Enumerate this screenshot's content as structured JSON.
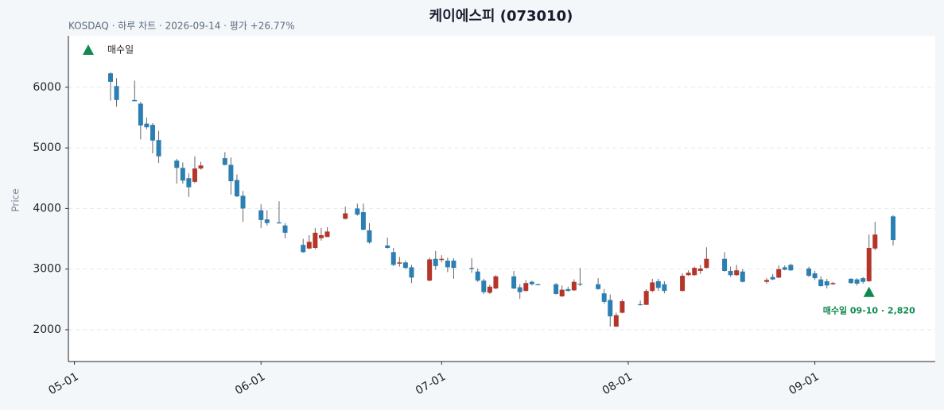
{
  "chart_data": {
    "type": "candlestick",
    "title": "케이에스피 (073010)",
    "subtitle": "KOSDAQ · 하루 차트 · 2026-09-14 · 평가 +26.77%",
    "y_label": "Price",
    "up_color": "#b5352b",
    "down_color": "#2b7fb3",
    "xlim": [
      "04-30",
      "09-21"
    ],
    "xticks": [
      "05-01",
      "06-01",
      "07-01",
      "08-01",
      "09-01"
    ],
    "ylim": [
      1475,
      6850
    ],
    "yticks": [
      2000,
      3000,
      4000,
      5000,
      6000
    ],
    "grid": true,
    "x": [
      "05-07",
      "05-08",
      "05-11",
      "05-12",
      "05-13",
      "05-14",
      "05-15",
      "05-18",
      "05-19",
      "05-20",
      "05-21",
      "05-22",
      "05-26",
      "05-27",
      "05-28",
      "05-29",
      "06-01",
      "06-02",
      "06-04",
      "06-05",
      "06-08",
      "06-09",
      "06-10",
      "06-11",
      "06-12",
      "06-15",
      "06-17",
      "06-18",
      "06-19",
      "06-22",
      "06-23",
      "06-24",
      "06-25",
      "06-26",
      "06-29",
      "06-30",
      "07-01",
      "07-02",
      "07-03",
      "07-06",
      "07-07",
      "07-08",
      "07-09",
      "07-10",
      "07-13",
      "07-14",
      "07-15",
      "07-16",
      "07-17",
      "07-20",
      "07-21",
      "07-22",
      "07-23",
      "07-24",
      "07-27",
      "07-28",
      "07-29",
      "07-30",
      "07-31",
      "08-03",
      "08-04",
      "08-05",
      "08-06",
      "08-07",
      "08-10",
      "08-11",
      "08-12",
      "08-13",
      "08-14",
      "08-17",
      "08-18",
      "08-19",
      "08-20",
      "08-24",
      "08-25",
      "08-26",
      "08-27",
      "08-28",
      "08-31",
      "09-01",
      "09-02",
      "09-03",
      "09-04",
      "09-07",
      "09-08",
      "09-09",
      "09-10",
      "09-11",
      "09-14"
    ],
    "open": [
      6230,
      6020,
      5790,
      5730,
      5400,
      5380,
      5130,
      4790,
      4670,
      4500,
      4440,
      4660,
      4830,
      4720,
      4470,
      4210,
      3970,
      3820,
      3770,
      3720,
      3400,
      3340,
      3350,
      3510,
      3530,
      3830,
      4000,
      3940,
      3640,
      3390,
      3280,
      3090,
      3110,
      3030,
      2810,
      3170,
      3150,
      3140,
      3140,
      3020,
      2960,
      2810,
      2610,
      2680,
      2880,
      2700,
      2640,
      2790,
      2750,
      2750,
      2550,
      2670,
      2650,
      2760,
      2750,
      2600,
      2490,
      2050,
      2280,
      2420,
      2410,
      2640,
      2800,
      2750,
      2640,
      2900,
      2900,
      2970,
      3020,
      3170,
      2970,
      2900,
      2960,
      2790,
      2870,
      2860,
      3030,
      3070,
      3010,
      2930,
      2830,
      2800,
      2750,
      2840,
      2830,
      2850,
      2800,
      3340,
      3870
    ],
    "high": [
      6250,
      6150,
      6110,
      5760,
      5500,
      5410,
      5280,
      4820,
      4760,
      4580,
      4860,
      4770,
      4930,
      4840,
      4560,
      4290,
      4070,
      3970,
      4120,
      3760,
      3500,
      3560,
      3680,
      3680,
      3690,
      4030,
      4080,
      4080,
      3760,
      3520,
      3350,
      3200,
      3140,
      3070,
      3190,
      3300,
      3230,
      3190,
      3180,
      3180,
      3010,
      2840,
      2740,
      2900,
      2970,
      2750,
      2820,
      2810,
      2760,
      2770,
      2730,
      2710,
      2830,
      3020,
      2850,
      2670,
      2580,
      2280,
      2500,
      2480,
      2670,
      2840,
      2840,
      2800,
      2930,
      2980,
      3040,
      3070,
      3360,
      3280,
      3040,
      3070,
      3000,
      2850,
      2920,
      3060,
      3060,
      3090,
      3040,
      2970,
      2880,
      2840,
      2790,
      2850,
      2850,
      2870,
      3570,
      3780,
      3890
    ],
    "low": [
      5780,
      5680,
      5770,
      5140,
      5310,
      4910,
      4750,
      4410,
      4410,
      4190,
      4420,
      4640,
      4710,
      4230,
      4190,
      3780,
      3680,
      3720,
      3750,
      3510,
      3270,
      3330,
      3330,
      3470,
      3530,
      3820,
      3880,
      3640,
      3420,
      3340,
      3050,
      3040,
      3000,
      2770,
      2800,
      2990,
      3110,
      2950,
      2840,
      2940,
      2790,
      2590,
      2590,
      2670,
      2670,
      2510,
      2630,
      2730,
      2740,
      2580,
      2540,
      2630,
      2640,
      2720,
      2660,
      2430,
      2050,
      2050,
      2270,
      2400,
      2410,
      2620,
      2640,
      2600,
      2630,
      2890,
      2890,
      2920,
      3010,
      2960,
      2870,
      2890,
      2780,
      2760,
      2820,
      2850,
      2980,
      2970,
      2870,
      2820,
      2710,
      2680,
      2740,
      2760,
      2730,
      2760,
      2790,
      3310,
      3390
    ],
    "close": [
      6090,
      5790,
      5770,
      5370,
      5340,
      5120,
      4860,
      4670,
      4460,
      4350,
      4660,
      4710,
      4720,
      4450,
      4200,
      4000,
      3810,
      3760,
      3760,
      3600,
      3280,
      3450,
      3600,
      3560,
      3620,
      3920,
      3900,
      3650,
      3440,
      3350,
      3070,
      3110,
      3020,
      2860,
      3160,
      3050,
      3170,
      3030,
      3020,
      3010,
      2810,
      2620,
      2710,
      2880,
      2680,
      2620,
      2770,
      2750,
      2740,
      2590,
      2660,
      2640,
      2790,
      2750,
      2670,
      2460,
      2220,
      2240,
      2470,
      2410,
      2640,
      2780,
      2690,
      2640,
      2890,
      2940,
      3020,
      3010,
      3170,
      2970,
      2900,
      2980,
      2790,
      2820,
      2830,
      3000,
      2990,
      2980,
      2890,
      2850,
      2720,
      2730,
      2770,
      2770,
      2760,
      2790,
      3350,
      3570,
      3480
    ],
    "markers": {
      "name": "매수일",
      "color": "#0e8a4f",
      "points": [
        {
          "x": "09-10",
          "label": "매수일 09-10 · 2,820"
        }
      ]
    }
  }
}
